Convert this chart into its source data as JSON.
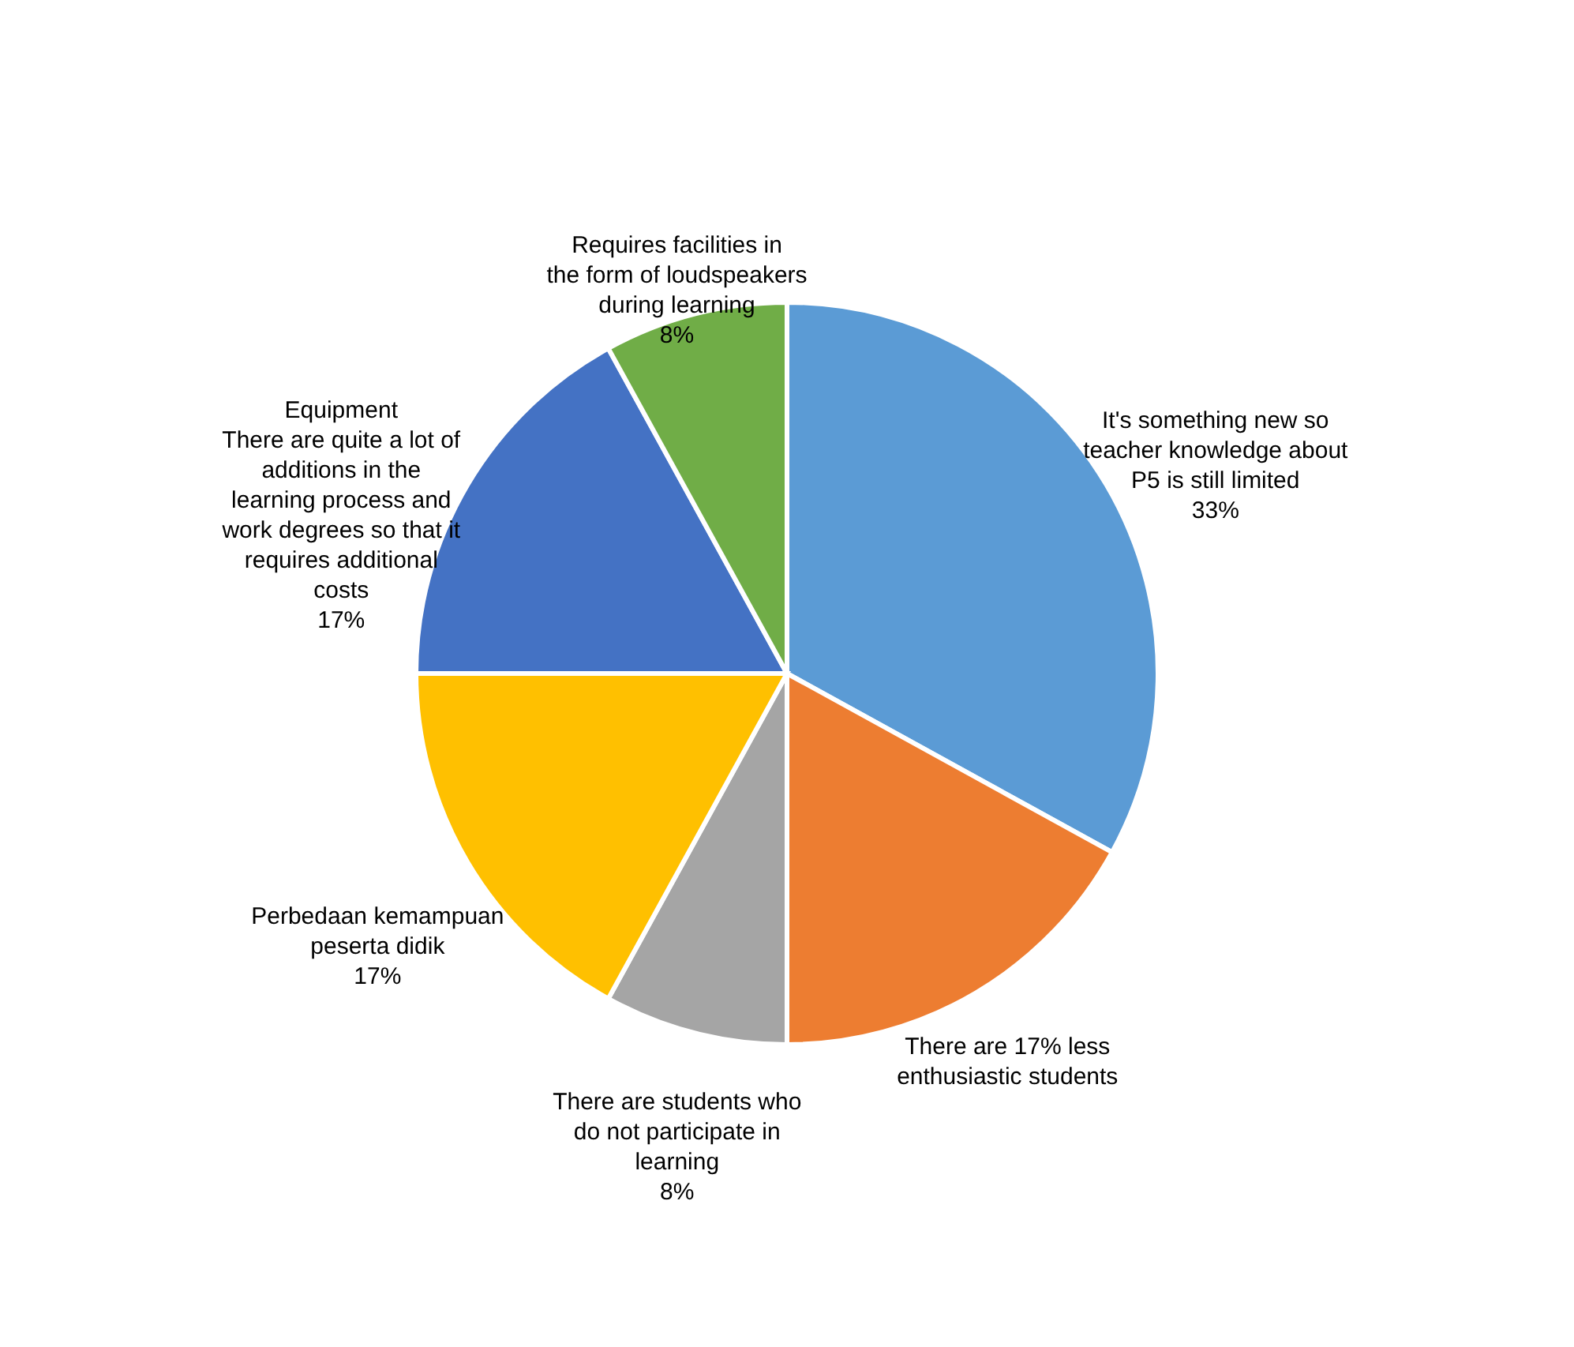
{
  "chart_data": {
    "type": "pie",
    "categories": [
      "It's something new so teacher knowledge about P5 is still limited",
      "There are 17% less enthusiastic students",
      "There are students who do not participate in learning",
      "Perbedaan kemampuan peserta didik",
      "Equipment\nThere are quite a lot of additions in the learning process and work degrees so that it requires additional costs",
      "Requires facilities in the form of loudspeakers during learning"
    ],
    "values": [
      33,
      17,
      8,
      17,
      17,
      8
    ],
    "value_labels": [
      "33%",
      null,
      "8%",
      "17%",
      "17%",
      "8%"
    ],
    "colors": [
      "#5b9bd5",
      "#ed7d31",
      "#a5a5a5",
      "#ffc000",
      "#4472c4",
      "#70ad47"
    ],
    "legend": false
  }
}
